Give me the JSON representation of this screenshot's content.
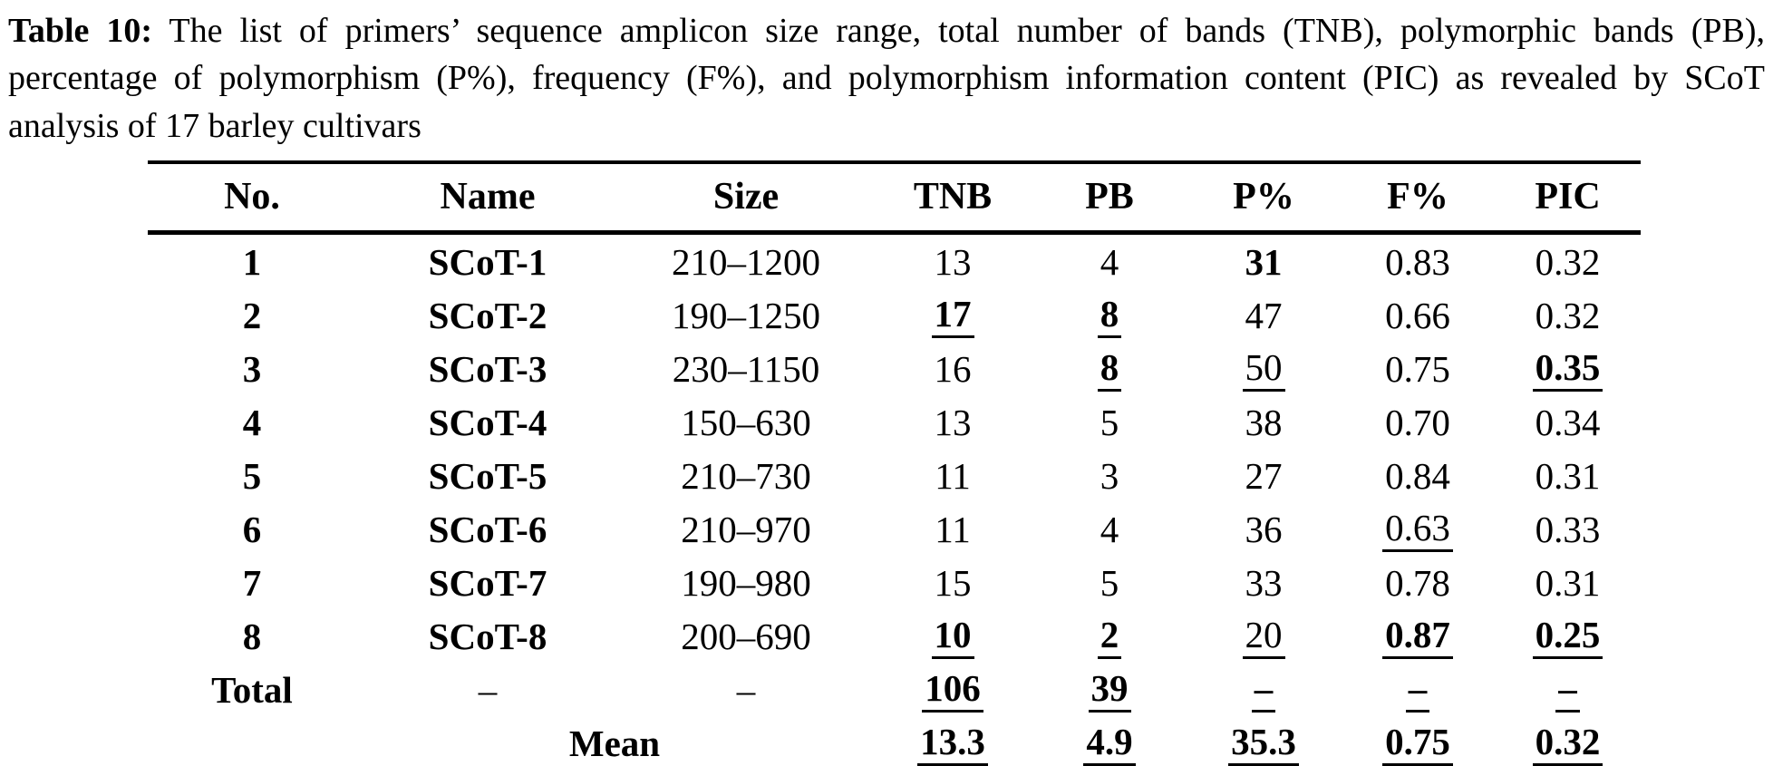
{
  "caption": {
    "label": "Table 10:",
    "line1_rest": " The list of primers’ sequence amplicon size range, total number of bands (TNB), polymorphic bands (PB),",
    "line2": "percentage of polymorphism (P%), frequency (F%), and polymorphism information content (PIC) as revealed by SCoT",
    "line3": "analysis of 17 barley cultivars"
  },
  "table": {
    "columns": [
      "No.",
      "Name",
      "Size",
      "TNB",
      "PB",
      "P%",
      "F%",
      "PIC"
    ],
    "rows": [
      {
        "cells": [
          {
            "text": "1",
            "bold": true
          },
          {
            "text": "SCoT-1",
            "bold": true
          },
          {
            "text": "210–1200"
          },
          {
            "text": "13"
          },
          {
            "text": "4"
          },
          {
            "text": "31",
            "bold": true
          },
          {
            "text": "0.83"
          },
          {
            "text": "0.32"
          }
        ]
      },
      {
        "cells": [
          {
            "text": "2",
            "bold": true
          },
          {
            "text": "SCoT-2",
            "bold": true
          },
          {
            "text": "190–1250"
          },
          {
            "text": "17",
            "bold": true,
            "underline": true
          },
          {
            "text": "8",
            "bold": true,
            "underline": true
          },
          {
            "text": "47"
          },
          {
            "text": "0.66"
          },
          {
            "text": "0.32"
          }
        ]
      },
      {
        "cells": [
          {
            "text": "3",
            "bold": true
          },
          {
            "text": "SCoT-3",
            "bold": true
          },
          {
            "text": "230–1150"
          },
          {
            "text": "16"
          },
          {
            "text": "8",
            "bold": true,
            "underline": true
          },
          {
            "text": "50",
            "underline": true
          },
          {
            "text": "0.75"
          },
          {
            "text": "0.35",
            "bold": true,
            "underline": true
          }
        ]
      },
      {
        "cells": [
          {
            "text": "4",
            "bold": true
          },
          {
            "text": "SCoT-4",
            "bold": true
          },
          {
            "text": "150–630"
          },
          {
            "text": "13"
          },
          {
            "text": "5"
          },
          {
            "text": "38"
          },
          {
            "text": "0.70"
          },
          {
            "text": "0.34"
          }
        ]
      },
      {
        "cells": [
          {
            "text": "5",
            "bold": true
          },
          {
            "text": "SCoT-5",
            "bold": true
          },
          {
            "text": "210–730"
          },
          {
            "text": "11"
          },
          {
            "text": "3"
          },
          {
            "text": "27"
          },
          {
            "text": "0.84"
          },
          {
            "text": "0.31"
          }
        ]
      },
      {
        "cells": [
          {
            "text": "6",
            "bold": true
          },
          {
            "text": "SCoT-6",
            "bold": true
          },
          {
            "text": "210–970"
          },
          {
            "text": "11"
          },
          {
            "text": "4"
          },
          {
            "text": "36"
          },
          {
            "text": "0.63",
            "underline": true
          },
          {
            "text": "0.33"
          }
        ]
      },
      {
        "cells": [
          {
            "text": "7",
            "bold": true
          },
          {
            "text": "SCoT-7",
            "bold": true
          },
          {
            "text": "190–980"
          },
          {
            "text": "15"
          },
          {
            "text": "5"
          },
          {
            "text": "33"
          },
          {
            "text": "0.78"
          },
          {
            "text": "0.31"
          }
        ]
      },
      {
        "cells": [
          {
            "text": "8",
            "bold": true
          },
          {
            "text": "SCoT-8",
            "bold": true
          },
          {
            "text": "200–690"
          },
          {
            "text": "10",
            "bold": true,
            "underline": true
          },
          {
            "text": "2",
            "bold": true,
            "underline": true
          },
          {
            "text": "20",
            "underline": true
          },
          {
            "text": "0.87",
            "bold": true,
            "underline": true
          },
          {
            "text": "0.25",
            "bold": true,
            "underline": true
          }
        ]
      },
      {
        "cells": [
          {
            "text": "Total",
            "bold": true
          },
          {
            "text": "–"
          },
          {
            "text": "–"
          },
          {
            "text": "106",
            "bold": true,
            "underline": true
          },
          {
            "text": "39",
            "bold": true,
            "underline": true
          },
          {
            "text": "–",
            "bold": true,
            "underline": true
          },
          {
            "text": "–",
            "bold": true,
            "underline": true
          },
          {
            "text": "–",
            "bold": true,
            "underline": true
          }
        ]
      },
      {
        "cells": [
          {
            "text": ""
          },
          {
            "text": "Mean",
            "bold": true,
            "span": 2
          },
          {
            "text": "13.3",
            "bold": true,
            "underline": true
          },
          {
            "text": "4.9",
            "bold": true,
            "underline": true
          },
          {
            "text": "35.3",
            "bold": true,
            "underline": true
          },
          {
            "text": "0.75",
            "bold": true,
            "underline": true
          },
          {
            "text": "0.32",
            "bold": true,
            "underline": true
          }
        ]
      }
    ]
  },
  "colors": {
    "text": "#000000",
    "background": "#ffffff",
    "rule": "#000000"
  }
}
